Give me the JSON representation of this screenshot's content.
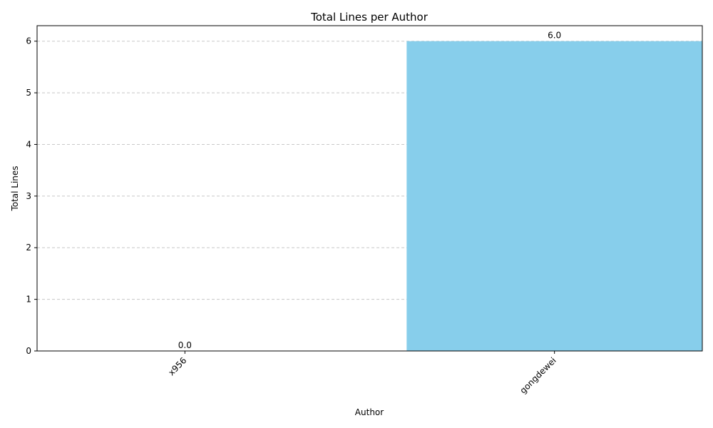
{
  "chart_data": {
    "type": "bar",
    "title": "Total Lines per Author",
    "xlabel": "Author",
    "ylabel": "Total Lines",
    "categories": [
      "x956",
      "gongdewei"
    ],
    "values": [
      0.0,
      6.0
    ],
    "data_labels": [
      "0.0",
      "6.0"
    ],
    "ylim": [
      0,
      6.3
    ],
    "yticks": [
      0,
      1,
      2,
      3,
      4,
      5,
      6
    ],
    "ytick_labels": [
      "0",
      "1",
      "2",
      "3",
      "4",
      "5",
      "6"
    ],
    "grid": "y-dashed",
    "bar_color": "#87CEEB",
    "grid_color": "#c8c8c8"
  }
}
